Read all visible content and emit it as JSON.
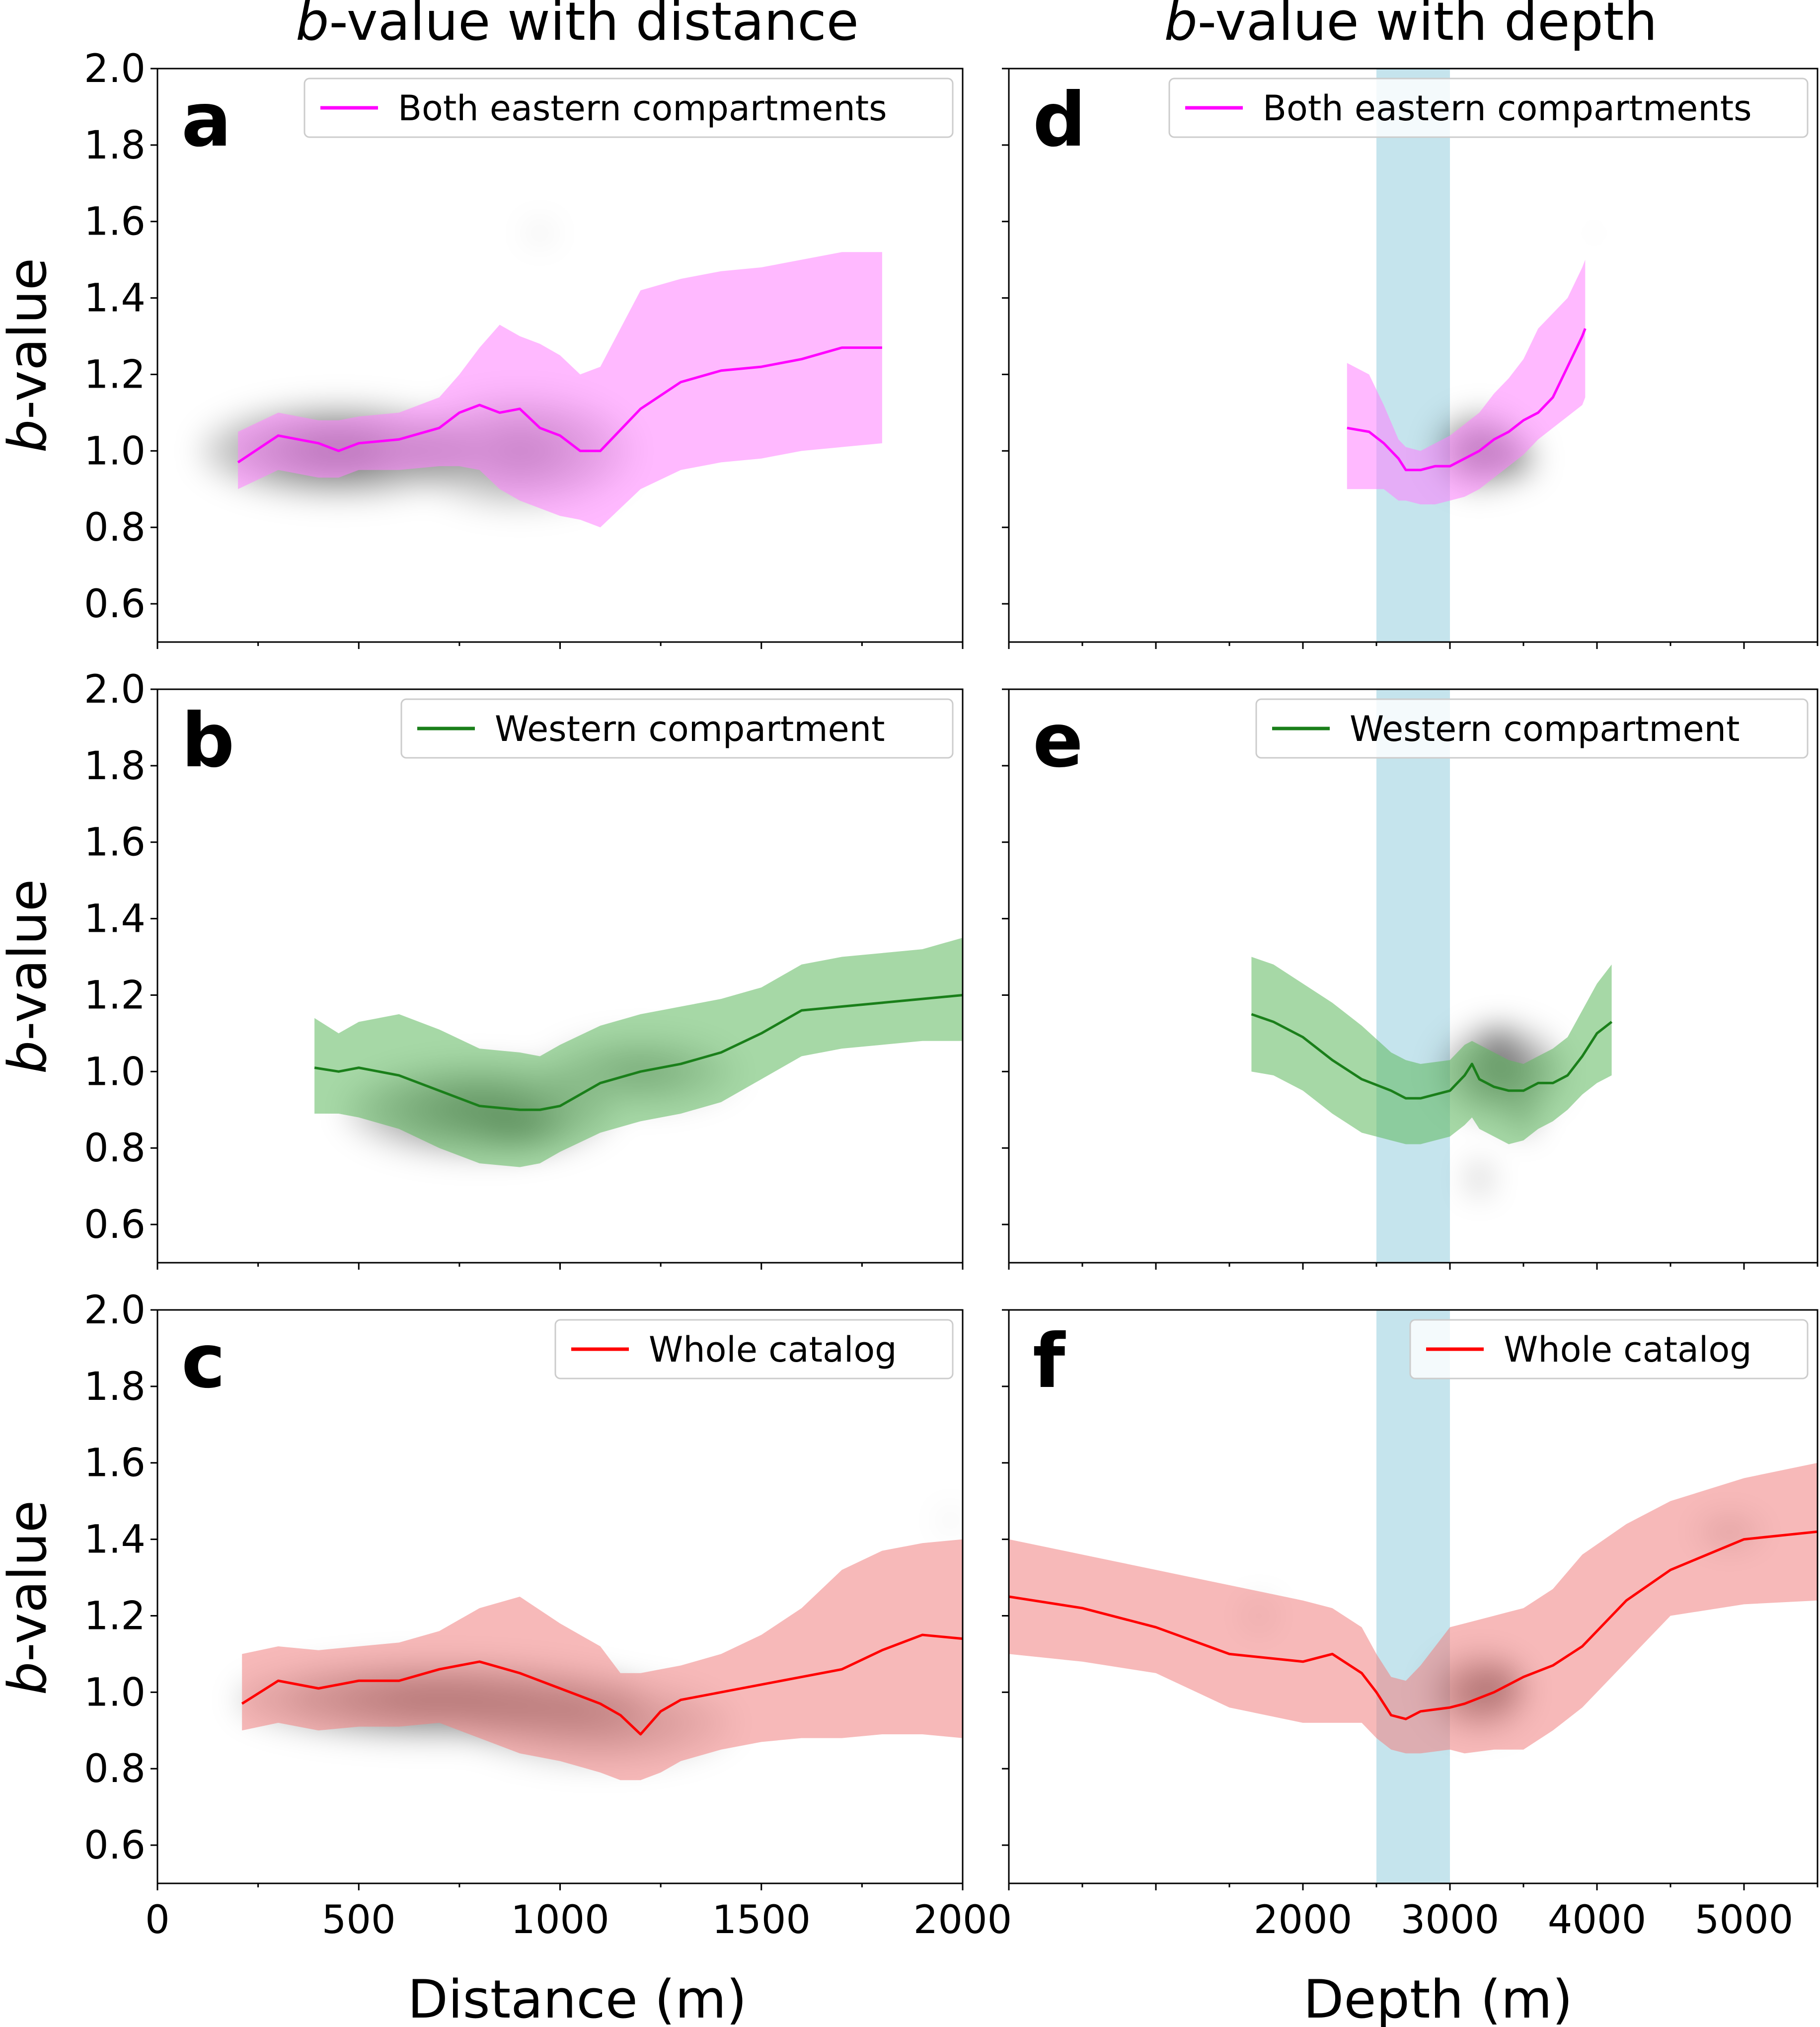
{
  "figure": {
    "column_titles": [
      {
        "italic": "b",
        "rest": "-value with distance"
      },
      {
        "italic": "b",
        "rest": "-value with depth"
      }
    ],
    "y_label": {
      "italic": "b",
      "rest": "-value"
    },
    "x_labels": [
      "Distance (m)",
      "Depth (m)"
    ],
    "colors": {
      "magenta": "#ff00ff",
      "green": "#1a7f1a",
      "red": "#ff0000",
      "highlight_band": "#add8e6",
      "density": "#000000"
    }
  },
  "chart_data": [
    {
      "panel": "a",
      "type": "line",
      "legend": "Both eastern compartments",
      "legend_position": "top-right",
      "color": "#ff00ff",
      "band_color": "#ff80ff",
      "xlim": [
        0,
        2000
      ],
      "ylim": [
        0.5,
        2.0
      ],
      "xticks": [
        0,
        500,
        1000,
        1500,
        2000
      ],
      "yticks": [
        0.6,
        0.8,
        1.0,
        1.2,
        1.4,
        1.6,
        1.8,
        2.0
      ],
      "x": [
        200,
        300,
        400,
        450,
        500,
        600,
        700,
        750,
        800,
        850,
        900,
        950,
        1000,
        1050,
        1100,
        1200,
        1300,
        1400,
        1500,
        1600,
        1700,
        1800
      ],
      "y": [
        0.97,
        1.04,
        1.02,
        1.0,
        1.02,
        1.03,
        1.06,
        1.1,
        1.12,
        1.1,
        1.11,
        1.06,
        1.04,
        1.0,
        1.0,
        1.11,
        1.18,
        1.21,
        1.22,
        1.24,
        1.27,
        1.27
      ],
      "upper": [
        1.05,
        1.1,
        1.08,
        1.08,
        1.09,
        1.1,
        1.14,
        1.2,
        1.27,
        1.33,
        1.3,
        1.28,
        1.25,
        1.2,
        1.22,
        1.42,
        1.45,
        1.47,
        1.48,
        1.5,
        1.52,
        1.52
      ],
      "lower": [
        0.9,
        0.95,
        0.93,
        0.93,
        0.95,
        0.95,
        0.96,
        0.96,
        0.95,
        0.9,
        0.87,
        0.85,
        0.83,
        0.82,
        0.8,
        0.9,
        0.95,
        0.97,
        0.98,
        1.0,
        1.01,
        1.02
      ],
      "highlight_band_x": null,
      "density_blobs": [
        {
          "x": 450,
          "y": 1.0,
          "sx": 340,
          "sy": 0.12,
          "a": 0.85
        },
        {
          "x": 900,
          "y": 1.0,
          "sx": 280,
          "sy": 0.15,
          "a": 0.6
        },
        {
          "x": 950,
          "y": 1.57,
          "sx": 40,
          "sy": 0.03,
          "a": 0.15
        }
      ]
    },
    {
      "panel": "b",
      "type": "line",
      "legend": "Western compartment",
      "legend_position": "top-right",
      "color": "#1a7f1a",
      "band_color": "#5cb85c",
      "xlim": [
        0,
        2000
      ],
      "ylim": [
        0.5,
        2.0
      ],
      "xticks": [
        0,
        500,
        1000,
        1500,
        2000
      ],
      "yticks": [
        0.6,
        0.8,
        1.0,
        1.2,
        1.4,
        1.6,
        1.8,
        2.0
      ],
      "x": [
        390,
        450,
        500,
        600,
        700,
        800,
        900,
        950,
        1000,
        1100,
        1200,
        1300,
        1400,
        1500,
        1600,
        1700,
        1800,
        1900,
        2000
      ],
      "y": [
        1.01,
        1.0,
        1.01,
        0.99,
        0.95,
        0.91,
        0.9,
        0.9,
        0.91,
        0.97,
        1.0,
        1.02,
        1.05,
        1.1,
        1.16,
        1.17,
        1.18,
        1.19,
        1.2
      ],
      "upper": [
        1.14,
        1.1,
        1.13,
        1.15,
        1.11,
        1.06,
        1.05,
        1.04,
        1.07,
        1.12,
        1.15,
        1.17,
        1.19,
        1.22,
        1.28,
        1.3,
        1.31,
        1.32,
        1.35
      ],
      "lower": [
        0.89,
        0.89,
        0.88,
        0.85,
        0.8,
        0.76,
        0.75,
        0.76,
        0.79,
        0.84,
        0.87,
        0.89,
        0.92,
        0.98,
        1.04,
        1.06,
        1.07,
        1.08,
        1.08
      ],
      "highlight_band_x": null,
      "density_blobs": [
        {
          "x": 800,
          "y": 0.9,
          "sx": 330,
          "sy": 0.12,
          "a": 0.8
        },
        {
          "x": 1200,
          "y": 1.0,
          "sx": 240,
          "sy": 0.09,
          "a": 0.5
        },
        {
          "x": 900,
          "y": 0.85,
          "sx": 120,
          "sy": 0.05,
          "a": 0.5
        }
      ]
    },
    {
      "panel": "c",
      "type": "line",
      "legend": "Whole catalog",
      "legend_position": "top-right",
      "color": "#ff0000",
      "band_color": "#f08080",
      "xlim": [
        0,
        2000
      ],
      "ylim": [
        0.5,
        2.0
      ],
      "xticks": [
        0,
        500,
        1000,
        1500,
        2000
      ],
      "yticks": [
        0.6,
        0.8,
        1.0,
        1.2,
        1.4,
        1.6,
        1.8,
        2.0
      ],
      "x": [
        210,
        300,
        400,
        500,
        600,
        700,
        800,
        900,
        1000,
        1100,
        1150,
        1200,
        1250,
        1300,
        1400,
        1500,
        1600,
        1700,
        1800,
        1900,
        2000
      ],
      "y": [
        0.97,
        1.03,
        1.01,
        1.03,
        1.03,
        1.06,
        1.08,
        1.05,
        1.01,
        0.97,
        0.94,
        0.89,
        0.95,
        0.98,
        1.0,
        1.02,
        1.04,
        1.06,
        1.11,
        1.15,
        1.14
      ],
      "upper": [
        1.1,
        1.12,
        1.11,
        1.12,
        1.13,
        1.16,
        1.22,
        1.25,
        1.18,
        1.12,
        1.05,
        1.05,
        1.06,
        1.07,
        1.1,
        1.15,
        1.22,
        1.32,
        1.37,
        1.39,
        1.4
      ],
      "lower": [
        0.9,
        0.92,
        0.9,
        0.91,
        0.91,
        0.92,
        0.88,
        0.84,
        0.82,
        0.79,
        0.77,
        0.77,
        0.79,
        0.82,
        0.85,
        0.87,
        0.88,
        0.88,
        0.89,
        0.89,
        0.88
      ],
      "highlight_band_x": null,
      "density_blobs": [
        {
          "x": 700,
          "y": 0.98,
          "sx": 500,
          "sy": 0.1,
          "a": 0.85
        },
        {
          "x": 1100,
          "y": 0.92,
          "sx": 330,
          "sy": 0.11,
          "a": 0.5
        },
        {
          "x": 1970,
          "y": 1.45,
          "sx": 30,
          "sy": 0.03,
          "a": 0.15
        }
      ]
    },
    {
      "panel": "d",
      "type": "line",
      "legend": "Both eastern compartments",
      "legend_position": "top-right",
      "color": "#ff00ff",
      "band_color": "#ff80ff",
      "xlim": [
        0,
        5500
      ],
      "ylim": [
        0.5,
        2.0
      ],
      "xticks": [
        0,
        1000,
        2000,
        3000,
        4000,
        5000
      ],
      "ytick_positions": [
        0.6,
        0.8,
        1.0,
        1.2,
        1.4,
        1.6,
        1.8,
        2.0
      ],
      "xtick_labels": [
        "",
        "",
        "2000",
        "3000",
        "4000",
        "5000"
      ],
      "x": [
        2300,
        2450,
        2550,
        2650,
        2700,
        2800,
        2900,
        3000,
        3100,
        3200,
        3300,
        3400,
        3500,
        3600,
        3700,
        3800,
        3900,
        3920
      ],
      "y": [
        1.06,
        1.05,
        1.02,
        0.98,
        0.95,
        0.95,
        0.96,
        0.96,
        0.98,
        1.0,
        1.03,
        1.05,
        1.08,
        1.1,
        1.14,
        1.22,
        1.3,
        1.32
      ],
      "upper": [
        1.23,
        1.2,
        1.12,
        1.03,
        1.01,
        1.0,
        1.02,
        1.04,
        1.07,
        1.1,
        1.15,
        1.19,
        1.24,
        1.32,
        1.36,
        1.4,
        1.48,
        1.5
      ],
      "lower": [
        0.9,
        0.9,
        0.9,
        0.87,
        0.87,
        0.86,
        0.86,
        0.87,
        0.88,
        0.9,
        0.93,
        0.96,
        0.99,
        1.03,
        1.06,
        1.09,
        1.12,
        1.14
      ],
      "highlight_band_x": [
        2500,
        3000
      ],
      "density_blobs": [
        {
          "x": 3200,
          "y": 1.0,
          "sx": 300,
          "sy": 0.1,
          "a": 0.85
        },
        {
          "x": 3450,
          "y": 0.98,
          "sx": 150,
          "sy": 0.06,
          "a": 0.5
        },
        {
          "x": 3980,
          "y": 1.57,
          "sx": 20,
          "sy": 0.02,
          "a": 0.15
        }
      ]
    },
    {
      "panel": "e",
      "type": "line",
      "legend": "Western compartment",
      "legend_position": "top-right",
      "color": "#1a7f1a",
      "band_color": "#5cb85c",
      "xlim": [
        0,
        5500
      ],
      "ylim": [
        0.5,
        2.0
      ],
      "xticks": [
        0,
        1000,
        2000,
        3000,
        4000,
        5000
      ],
      "ytick_positions": [
        0.6,
        0.8,
        1.0,
        1.2,
        1.4,
        1.6,
        1.8,
        2.0
      ],
      "xtick_labels": [
        "",
        "",
        "2000",
        "3000",
        "4000",
        "5000"
      ],
      "x": [
        1650,
        1800,
        2000,
        2200,
        2400,
        2600,
        2700,
        2800,
        3000,
        3100,
        3150,
        3200,
        3300,
        3400,
        3500,
        3600,
        3700,
        3800,
        3900,
        4000,
        4100
      ],
      "y": [
        1.15,
        1.13,
        1.09,
        1.03,
        0.98,
        0.95,
        0.93,
        0.93,
        0.95,
        0.99,
        1.02,
        0.98,
        0.96,
        0.95,
        0.95,
        0.97,
        0.97,
        0.99,
        1.04,
        1.1,
        1.13
      ],
      "upper": [
        1.3,
        1.28,
        1.23,
        1.18,
        1.12,
        1.05,
        1.03,
        1.02,
        1.03,
        1.07,
        1.08,
        1.07,
        1.05,
        1.03,
        1.02,
        1.04,
        1.06,
        1.09,
        1.16,
        1.23,
        1.28
      ],
      "lower": [
        1.0,
        0.99,
        0.95,
        0.89,
        0.84,
        0.82,
        0.81,
        0.81,
        0.83,
        0.86,
        0.88,
        0.85,
        0.83,
        0.81,
        0.82,
        0.85,
        0.87,
        0.9,
        0.94,
        0.97,
        0.99
      ],
      "highlight_band_x": [
        2500,
        3000
      ],
      "density_blobs": [
        {
          "x": 3350,
          "y": 1.0,
          "sx": 420,
          "sy": 0.12,
          "a": 0.8
        },
        {
          "x": 3320,
          "y": 1.08,
          "sx": 120,
          "sy": 0.04,
          "a": 0.6
        },
        {
          "x": 3500,
          "y": 0.88,
          "sx": 80,
          "sy": 0.05,
          "a": 0.6
        },
        {
          "x": 3200,
          "y": 0.72,
          "sx": 80,
          "sy": 0.05,
          "a": 0.4
        }
      ]
    },
    {
      "panel": "f",
      "type": "line",
      "legend": "Whole catalog",
      "legend_position": "top-right",
      "color": "#ff0000",
      "band_color": "#f08080",
      "xlim": [
        0,
        5500
      ],
      "ylim": [
        0.5,
        2.0
      ],
      "xticks": [
        0,
        1000,
        2000,
        3000,
        4000,
        5000
      ],
      "ytick_positions": [
        0.6,
        0.8,
        1.0,
        1.2,
        1.4,
        1.6,
        1.8,
        2.0
      ],
      "xtick_labels": [
        "",
        "",
        "2000",
        "3000",
        "4000",
        "5000"
      ],
      "x": [
        0,
        500,
        1000,
        1500,
        2000,
        2200,
        2400,
        2500,
        2600,
        2700,
        2800,
        3000,
        3100,
        3300,
        3500,
        3700,
        3900,
        4200,
        4500,
        5000,
        5500
      ],
      "y": [
        1.25,
        1.22,
        1.17,
        1.1,
        1.08,
        1.1,
        1.05,
        1.0,
        0.94,
        0.93,
        0.95,
        0.96,
        0.97,
        1.0,
        1.04,
        1.07,
        1.12,
        1.24,
        1.32,
        1.4,
        1.42
      ],
      "upper": [
        1.4,
        1.36,
        1.32,
        1.28,
        1.24,
        1.22,
        1.17,
        1.1,
        1.04,
        1.03,
        1.07,
        1.17,
        1.18,
        1.2,
        1.22,
        1.27,
        1.36,
        1.44,
        1.5,
        1.56,
        1.6
      ],
      "lower": [
        1.1,
        1.08,
        1.05,
        0.96,
        0.92,
        0.92,
        0.92,
        0.88,
        0.85,
        0.84,
        0.84,
        0.85,
        0.84,
        0.85,
        0.85,
        0.9,
        0.96,
        1.08,
        1.2,
        1.23,
        1.24
      ],
      "highlight_band_x": [
        2500,
        3000
      ],
      "density_blobs": [
        {
          "x": 3200,
          "y": 1.0,
          "sx": 330,
          "sy": 0.1,
          "a": 0.9
        },
        {
          "x": 3350,
          "y": 1.02,
          "sx": 150,
          "sy": 0.06,
          "a": 0.5
        },
        {
          "x": 1700,
          "y": 1.2,
          "sx": 130,
          "sy": 0.05,
          "a": 0.2
        },
        {
          "x": 4900,
          "y": 1.42,
          "sx": 250,
          "sy": 0.05,
          "a": 0.3
        }
      ]
    }
  ]
}
